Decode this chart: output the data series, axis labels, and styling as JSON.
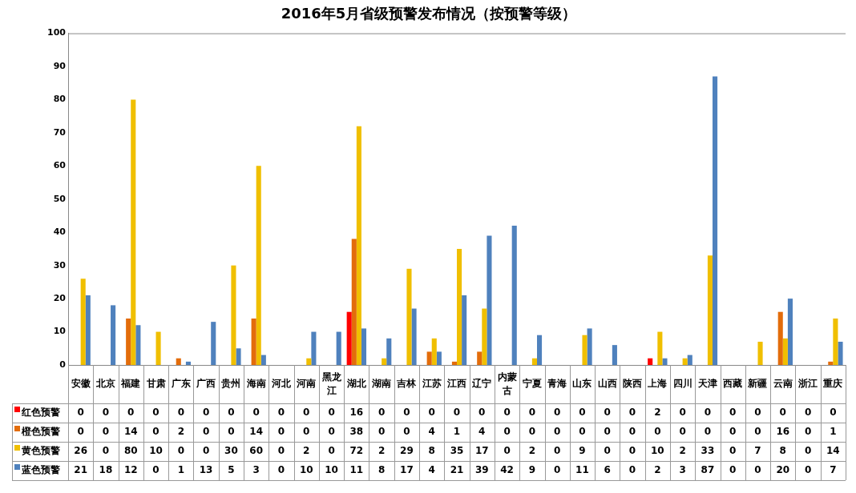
{
  "chart_data": {
    "type": "bar",
    "title": "2016年5月省级预警发布情况（按预警等级）",
    "categories": [
      "安徽",
      "北京",
      "福建",
      "甘肃",
      "广东",
      "广西",
      "贵州",
      "海南",
      "河北",
      "河南",
      "黑龙江",
      "湖北",
      "湖南",
      "吉林",
      "江苏",
      "江西",
      "辽宁",
      "内蒙古",
      "宁夏",
      "青海",
      "山东",
      "山西",
      "陕西",
      "上海",
      "四川",
      "天津",
      "西藏",
      "新疆",
      "云南",
      "浙江",
      "重庆"
    ],
    "series": [
      {
        "name": "红色预警",
        "color": "#ff0000",
        "values": [
          0,
          0,
          0,
          0,
          0,
          0,
          0,
          0,
          0,
          0,
          0,
          16,
          0,
          0,
          0,
          0,
          0,
          0,
          0,
          0,
          0,
          0,
          0,
          2,
          0,
          0,
          0,
          0,
          0,
          0,
          0
        ]
      },
      {
        "name": "橙色预警",
        "color": "#e36c0a",
        "values": [
          0,
          0,
          14,
          0,
          2,
          0,
          0,
          14,
          0,
          0,
          0,
          38,
          0,
          0,
          4,
          1,
          4,
          0,
          0,
          0,
          0,
          0,
          0,
          0,
          0,
          0,
          0,
          0,
          16,
          0,
          1
        ]
      },
      {
        "name": "黄色预警",
        "color": "#f0bf00",
        "values": [
          26,
          0,
          80,
          10,
          0,
          0,
          30,
          60,
          0,
          2,
          0,
          72,
          2,
          29,
          8,
          35,
          17,
          0,
          2,
          0,
          9,
          0,
          0,
          10,
          2,
          33,
          0,
          7,
          8,
          0,
          14
        ]
      },
      {
        "name": "蓝色预警",
        "color": "#4f81bd",
        "values": [
          21,
          18,
          12,
          0,
          1,
          13,
          5,
          3,
          0,
          10,
          10,
          11,
          8,
          17,
          4,
          21,
          39,
          42,
          9,
          0,
          11,
          6,
          0,
          2,
          3,
          87,
          0,
          0,
          20,
          0,
          7
        ]
      }
    ],
    "ylim": [
      0,
      100
    ],
    "yticks": [
      0,
      10,
      20,
      30,
      40,
      50,
      60,
      70,
      80,
      90,
      100
    ],
    "grid": false,
    "legend": "bottom",
    "data_labels": true
  }
}
